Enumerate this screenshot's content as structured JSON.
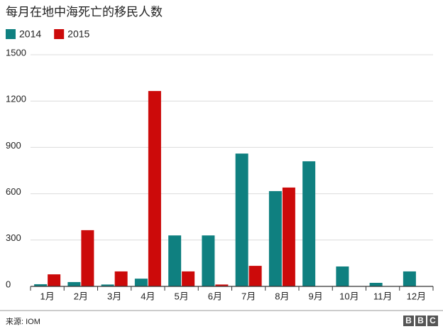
{
  "chart_data": {
    "type": "bar",
    "title": "每月在地中海死亡的移民人数",
    "categories": [
      "1月",
      "2月",
      "3月",
      "4月",
      "5月",
      "6月",
      "7月",
      "8月",
      "9月",
      "10月",
      "11月",
      "12月"
    ],
    "series": [
      {
        "name": "2014",
        "color": "#0f8080",
        "values": [
          14,
          28,
          12,
          50,
          330,
          330,
          860,
          617,
          810,
          129,
          23,
          97
        ]
      },
      {
        "name": "2015",
        "color": "#cc0a0a",
        "values": [
          78,
          364,
          97,
          1265,
          97,
          12,
          133,
          640,
          null,
          null,
          null,
          null
        ]
      }
    ],
    "ylim": [
      0,
      1500
    ],
    "yticks": [
      0,
      300,
      600,
      900,
      1200,
      1500
    ],
    "grid": true,
    "legend": "top-left"
  },
  "footer": {
    "source": "来源: IOM",
    "logo": [
      "B",
      "B",
      "C"
    ]
  }
}
